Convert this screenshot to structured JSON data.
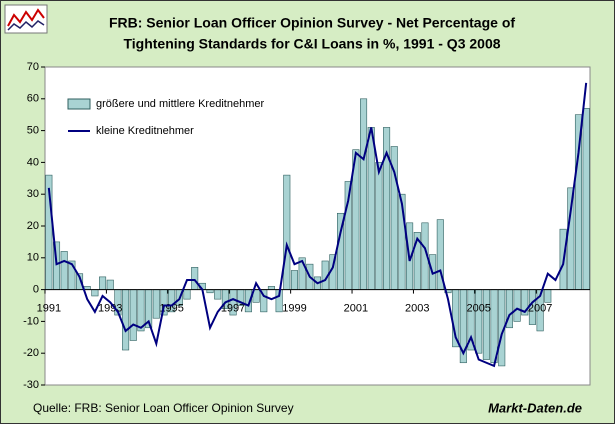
{
  "chart_data": {
    "type": "bar-line",
    "title": [
      "FRB: Senior Loan Officer Opinion Survey - Net Percentage of",
      "Tightening Standards for C&I Loans in %, 1991 - Q3 2008"
    ],
    "source": "Quelle: FRB: Senior Loan Officer Opinion Survey",
    "brand": "Markt-Daten.de",
    "categories": [
      "1991",
      null,
      null,
      null,
      null,
      null,
      null,
      null,
      "1993",
      null,
      null,
      null,
      null,
      null,
      null,
      null,
      "1995",
      null,
      null,
      null,
      null,
      null,
      null,
      null,
      "1997",
      null,
      null,
      null,
      null,
      null,
      null,
      null,
      "1999",
      null,
      null,
      null,
      null,
      null,
      null,
      null,
      "2001",
      null,
      null,
      null,
      null,
      null,
      null,
      null,
      "2003",
      null,
      null,
      null,
      null,
      null,
      null,
      null,
      "2005",
      null,
      null,
      null,
      null,
      null,
      null,
      null,
      "2007",
      null,
      null,
      null,
      null,
      null,
      null
    ],
    "series": [
      {
        "name": "größere und mittlere Kreditnehmer",
        "color": "#a9d3d3",
        "kind": "bar",
        "values": [
          36,
          15,
          12,
          9,
          5,
          1,
          -2,
          4,
          3,
          -8,
          -19,
          -16,
          -13,
          -12,
          -9,
          -8,
          -7,
          -5,
          -3,
          7,
          2,
          -1,
          -3,
          -6,
          -8,
          -5,
          -7,
          -4,
          -7,
          1,
          -7,
          36,
          6,
          10,
          8,
          4,
          9,
          11,
          24,
          34,
          44,
          60,
          51,
          40,
          51,
          45,
          30,
          21,
          18,
          21,
          11,
          22,
          -1,
          -18,
          -23,
          -19,
          -20,
          -22,
          -23,
          -24,
          -12,
          -10,
          -8,
          -11,
          -13,
          -4,
          0,
          19,
          32,
          55,
          57
        ]
      },
      {
        "name": "kleine Kreditnehmer",
        "color": "#000080",
        "kind": "line",
        "values": [
          32,
          8,
          9,
          8,
          4,
          -3,
          -7,
          -2,
          -4,
          -7,
          -13,
          -11,
          -12,
          -10,
          -17,
          -5,
          -5,
          -3,
          3,
          3,
          0,
          -12,
          -7,
          -4,
          -3,
          -4,
          -5,
          2,
          -2,
          -3,
          -2,
          14,
          8,
          9,
          4,
          2,
          3,
          7,
          18,
          28,
          43,
          41,
          51,
          37,
          43,
          37,
          27,
          9,
          16,
          13,
          5,
          6,
          -3,
          -15,
          -20,
          -15,
          -22,
          -23,
          -24,
          -14,
          -8,
          -6,
          -7,
          -4,
          -2,
          5,
          3,
          8,
          25,
          43,
          65
        ]
      }
    ],
    "ylim": [
      -30,
      70
    ],
    "yticks": [
      -30,
      -20,
      -10,
      0,
      10,
      20,
      30,
      40,
      50,
      60,
      70
    ]
  }
}
